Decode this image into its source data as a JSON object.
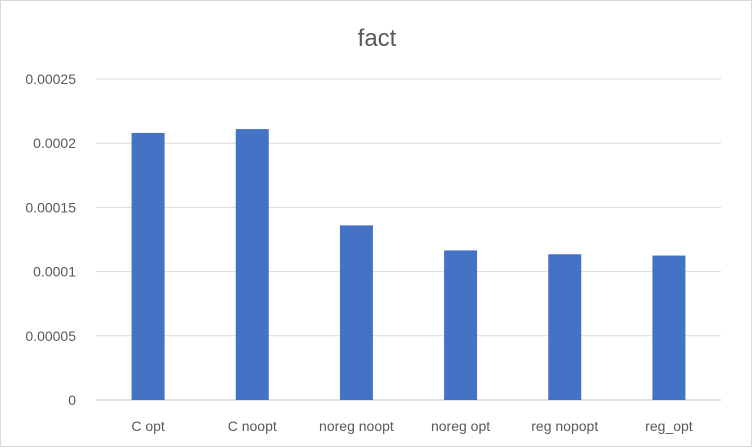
{
  "chart_data": {
    "type": "bar",
    "title": "fact",
    "categories": [
      "C opt",
      "C noopt",
      "noreg noopt",
      "noreg opt",
      "reg nopopt",
      "reg_opt"
    ],
    "values": [
      0.000208,
      0.000211,
      0.000136,
      0.0001165,
      0.0001135,
      0.0001125
    ],
    "ylim": [
      0,
      0.00025
    ],
    "yticks": [
      "0",
      "0.00005",
      "0.0001",
      "0.00015",
      "0.0002",
      "0.00025"
    ],
    "xlabel": "",
    "ylabel": "",
    "grid": true,
    "legend": "none",
    "bar_color": "#4472C4"
  }
}
